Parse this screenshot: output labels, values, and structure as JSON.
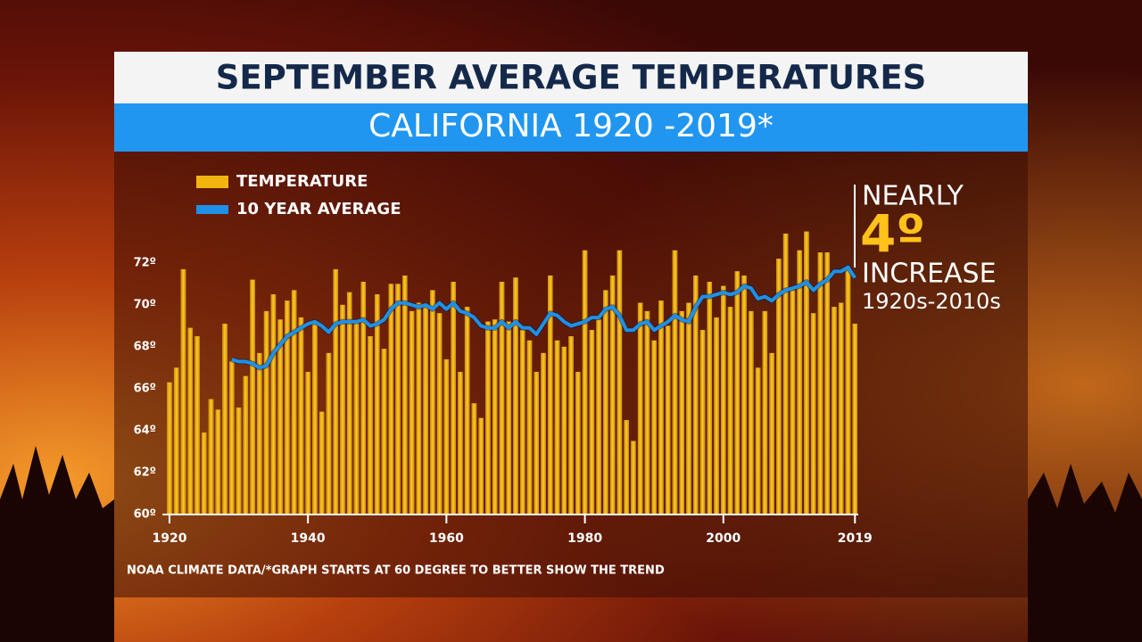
{
  "chart_data": {
    "type": "bar",
    "title": "SEPTEMBER AVERAGE TEMPERATURES",
    "subtitle": "CALIFORNIA 1920 -2019*",
    "footnote": "NOAA CLIMATE DATA/*GRAPH STARTS AT 60 DEGREE TO BETTER SHOW THE TREND",
    "annotation": {
      "line1": "NEARLY",
      "line2": "4º",
      "line3": "INCREASE",
      "line4": "1920s-2010s"
    },
    "legend": "top-left",
    "x": [
      1920,
      1921,
      1922,
      1923,
      1924,
      1925,
      1926,
      1927,
      1928,
      1929,
      1930,
      1931,
      1932,
      1933,
      1934,
      1935,
      1936,
      1937,
      1938,
      1939,
      1940,
      1941,
      1942,
      1943,
      1944,
      1945,
      1946,
      1947,
      1948,
      1949,
      1950,
      1951,
      1952,
      1953,
      1954,
      1955,
      1956,
      1957,
      1958,
      1959,
      1960,
      1961,
      1962,
      1963,
      1964,
      1965,
      1966,
      1967,
      1968,
      1969,
      1970,
      1971,
      1972,
      1973,
      1974,
      1975,
      1976,
      1977,
      1978,
      1979,
      1980,
      1981,
      1982,
      1983,
      1984,
      1985,
      1986,
      1987,
      1988,
      1989,
      1990,
      1991,
      1992,
      1993,
      1994,
      1995,
      1996,
      1997,
      1998,
      1999,
      2000,
      2001,
      2002,
      2003,
      2004,
      2005,
      2006,
      2007,
      2008,
      2009,
      2010,
      2011,
      2012,
      2013,
      2014,
      2015,
      2016,
      2017,
      2018,
      2019
    ],
    "xlim": [
      1919,
      2020
    ],
    "xticks": [
      1920,
      1940,
      1960,
      1980,
      2000,
      2019
    ],
    "ylim": [
      60,
      74
    ],
    "yticks": [
      {
        "value": 60,
        "label": "60º"
      },
      {
        "value": 62,
        "label": "62º"
      },
      {
        "value": 64,
        "label": "64º"
      },
      {
        "value": 66,
        "label": "66º"
      },
      {
        "value": 68,
        "label": "68º"
      },
      {
        "value": 70,
        "label": "70º"
      },
      {
        "value": 72,
        "label": "72º"
      }
    ],
    "series": [
      {
        "name": "TEMPERATURE",
        "type": "bar",
        "color": "#f2b40f",
        "values": [
          66.3,
          67.0,
          71.7,
          68.9,
          68.5,
          63.9,
          65.5,
          65.0,
          69.1,
          67.3,
          65.1,
          66.6,
          71.2,
          67.7,
          69.7,
          70.5,
          69.3,
          70.2,
          70.7,
          69.4,
          66.8,
          69.2,
          64.9,
          67.7,
          71.7,
          70.0,
          70.6,
          69.2,
          71.1,
          68.5,
          70.5,
          67.9,
          71.0,
          71.0,
          71.4,
          69.7,
          70.1,
          69.9,
          70.7,
          69.6,
          67.4,
          71.1,
          66.8,
          69.9,
          65.3,
          64.6,
          69.2,
          69.3,
          71.1,
          69.2,
          71.3,
          68.8,
          68.3,
          66.8,
          67.7,
          71.4,
          68.3,
          68.0,
          68.5,
          66.8,
          72.6,
          68.8,
          69.3,
          70.7,
          71.4,
          72.6,
          64.5,
          63.5,
          70.1,
          69.7,
          68.3,
          70.2,
          69.0,
          72.6,
          69.7,
          70.1,
          71.4,
          68.8,
          71.1,
          69.4,
          70.9,
          69.9,
          71.6,
          71.4,
          69.7,
          67.0,
          69.7,
          67.7,
          72.2,
          73.4,
          70.7,
          72.6,
          73.5,
          69.6,
          72.5,
          72.5,
          69.9,
          70.1,
          71.8,
          69.1
        ]
      },
      {
        "name": "10 YEAR AVERAGE",
        "type": "line",
        "color": "#1e90e8",
        "values": [
          null,
          null,
          null,
          null,
          null,
          null,
          null,
          null,
          null,
          67.4,
          67.3,
          67.3,
          67.2,
          67.0,
          67.1,
          67.7,
          68.1,
          68.5,
          68.7,
          68.9,
          69.1,
          69.2,
          69.0,
          68.7,
          69.1,
          69.2,
          69.2,
          69.2,
          69.3,
          69.0,
          69.1,
          69.3,
          69.8,
          70.1,
          70.1,
          70.0,
          69.9,
          70.0,
          69.8,
          70.1,
          69.8,
          70.1,
          69.7,
          69.6,
          69.4,
          69.0,
          68.9,
          68.9,
          69.2,
          68.9,
          69.2,
          68.9,
          68.9,
          68.6,
          69.1,
          69.6,
          69.5,
          69.2,
          69.0,
          69.1,
          69.2,
          69.4,
          69.4,
          69.8,
          69.9,
          69.5,
          68.8,
          68.8,
          69.1,
          69.2,
          68.8,
          69.0,
          69.2,
          69.5,
          69.3,
          69.2,
          69.9,
          70.4,
          70.4,
          70.5,
          70.6,
          70.5,
          70.6,
          70.9,
          70.8,
          70.3,
          70.4,
          70.2,
          70.5,
          70.7,
          70.8,
          70.9,
          71.1,
          70.7,
          71.0,
          71.2,
          71.6,
          71.6,
          71.8,
          71.3
        ]
      }
    ]
  }
}
